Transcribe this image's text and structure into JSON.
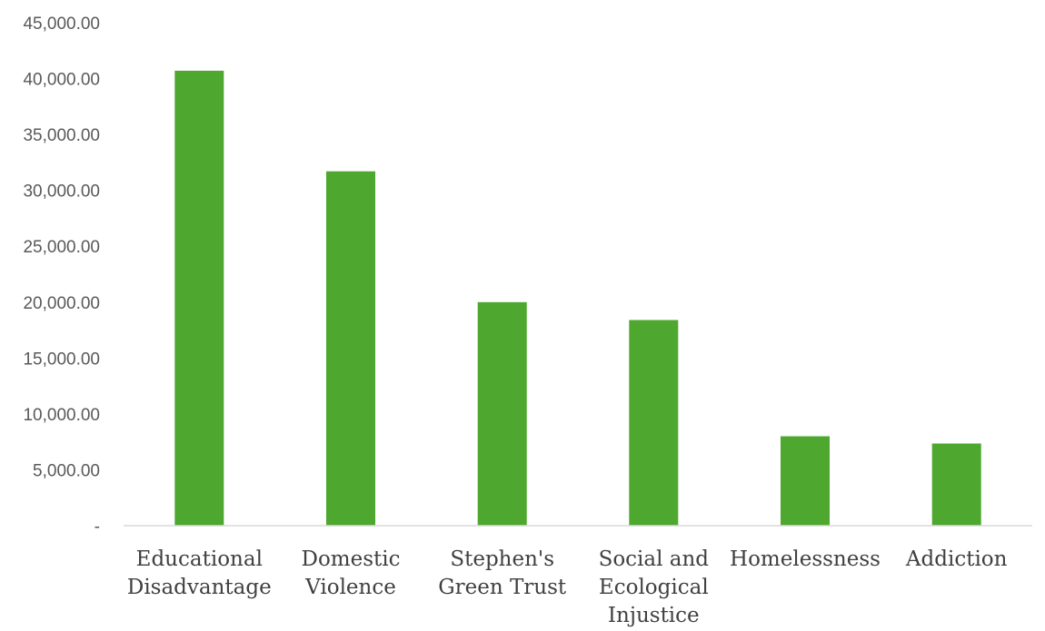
{
  "chart_data": {
    "type": "bar",
    "title": "",
    "xlabel": "",
    "ylabel": "",
    "categories": [
      [
        "Educational",
        "Disadvantage"
      ],
      [
        "Domestic",
        "Violence"
      ],
      [
        "Stephen's",
        "Green Trust"
      ],
      [
        "Social and",
        "Ecological",
        "Injustice"
      ],
      [
        "Homelessness"
      ],
      [
        "Addiction"
      ]
    ],
    "values": [
      40700,
      31700,
      20000,
      18400,
      8000,
      7350
    ],
    "ylim": [
      0,
      45000
    ],
    "yticks": [
      0,
      5000,
      10000,
      15000,
      20000,
      25000,
      30000,
      35000,
      40000,
      45000
    ],
    "ytick_labels": [
      "-",
      "5,000.00",
      "10,000.00",
      "15,000.00",
      "20,000.00",
      "25,000.00",
      "30,000.00",
      "35,000.00",
      "40,000.00",
      "45,000.00"
    ],
    "grid": false,
    "legend": "none",
    "bar_color": "#4ea72e",
    "axis_color": "#d9d9d9"
  }
}
